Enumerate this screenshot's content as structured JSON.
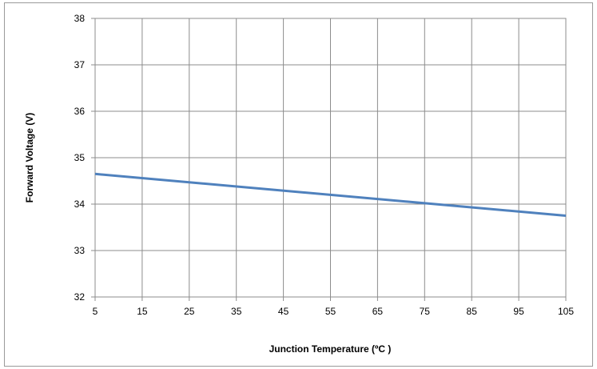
{
  "chart_data": {
    "type": "line",
    "title": "",
    "xlabel": "Junction  Temperature (ºC )",
    "ylabel": "Forward Voltage  (V)",
    "xlim": [
      5,
      105
    ],
    "ylim": [
      32,
      38
    ],
    "xticks": [
      "5",
      "15",
      "25",
      "35",
      "45",
      "55",
      "65",
      "75",
      "85",
      "95",
      "105"
    ],
    "yticks": [
      "32",
      "33",
      "34",
      "35",
      "36",
      "37",
      "38"
    ],
    "grid": true,
    "legend": "none",
    "series": [
      {
        "color": "#4f81bd",
        "x": [
          5,
          105
        ],
        "y": [
          34.65,
          33.75
        ]
      }
    ]
  }
}
